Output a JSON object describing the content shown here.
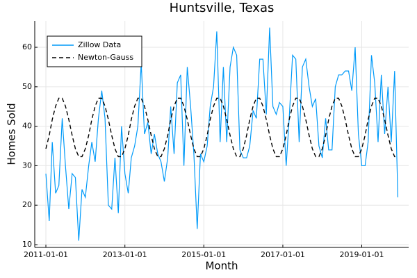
{
  "chart_data": {
    "type": "line",
    "title": "Huntsville, Texas",
    "x_label": "Month",
    "y_label": "Homes Sold",
    "x": [
      "2011-01-01",
      "2011-02-01",
      "2011-03-01",
      "2011-04-01",
      "2011-05-01",
      "2011-06-01",
      "2011-07-01",
      "2011-08-01",
      "2011-09-01",
      "2011-10-01",
      "2011-11-01",
      "2011-12-01",
      "2012-01-01",
      "2012-02-01",
      "2012-03-01",
      "2012-04-01",
      "2012-05-01",
      "2012-06-01",
      "2012-07-01",
      "2012-08-01",
      "2012-09-01",
      "2012-10-01",
      "2012-11-01",
      "2012-12-01",
      "2013-01-01",
      "2013-02-01",
      "2013-03-01",
      "2013-04-01",
      "2013-05-01",
      "2013-06-01",
      "2013-07-01",
      "2013-08-01",
      "2013-09-01",
      "2013-10-01",
      "2013-11-01",
      "2013-12-01",
      "2014-01-01",
      "2014-02-01",
      "2014-03-01",
      "2014-04-01",
      "2014-05-01",
      "2014-06-01",
      "2014-07-01",
      "2014-08-01",
      "2014-09-01",
      "2014-10-01",
      "2014-11-01",
      "2014-12-01",
      "2015-01-01",
      "2015-02-01",
      "2015-03-01",
      "2015-04-01",
      "2015-05-01",
      "2015-06-01",
      "2015-07-01",
      "2015-08-01",
      "2015-09-01",
      "2015-10-01",
      "2015-11-01",
      "2015-12-01",
      "2016-01-01",
      "2016-02-01",
      "2016-03-01",
      "2016-04-01",
      "2016-05-01",
      "2016-06-01",
      "2016-07-01",
      "2016-08-01",
      "2016-09-01",
      "2016-10-01",
      "2016-11-01",
      "2016-12-01",
      "2017-01-01",
      "2017-02-01",
      "2017-03-01",
      "2017-04-01",
      "2017-05-01",
      "2017-06-01",
      "2017-07-01",
      "2017-08-01",
      "2017-09-01",
      "2017-10-01",
      "2017-11-01",
      "2017-12-01",
      "2018-01-01",
      "2018-02-01",
      "2018-03-01",
      "2018-04-01",
      "2018-05-01",
      "2018-06-01",
      "2018-07-01",
      "2018-08-01",
      "2018-09-01",
      "2018-10-01",
      "2018-11-01",
      "2018-12-01",
      "2019-01-01",
      "2019-02-01",
      "2019-03-01",
      "2019-04-01",
      "2019-05-01",
      "2019-06-01",
      "2019-07-01",
      "2019-08-01",
      "2019-09-01",
      "2019-10-01",
      "2019-11-01",
      "2019-12-01"
    ],
    "series": [
      {
        "name": "Zillow Data",
        "color": "#009af9",
        "dash": "solid",
        "values": [
          28,
          16,
          36,
          23,
          25,
          42,
          30,
          19,
          28,
          27,
          11,
          24,
          22,
          30,
          36,
          31,
          42,
          49,
          42,
          20,
          19,
          32,
          18,
          40,
          28,
          23,
          32,
          35,
          40,
          56,
          38,
          41,
          33,
          38,
          33,
          31,
          26,
          32,
          45,
          33,
          51,
          53,
          30,
          55,
          45,
          33,
          14,
          33,
          31,
          35,
          45,
          50,
          64,
          36,
          55,
          36,
          55,
          60,
          58,
          34,
          32,
          32,
          35,
          44,
          42,
          57,
          57,
          43,
          65,
          45,
          43,
          46,
          45,
          30,
          42,
          58,
          57,
          36,
          55,
          57,
          50,
          45,
          47,
          35,
          32,
          42,
          34,
          34,
          50,
          53,
          53,
          54,
          54,
          49,
          60,
          38,
          30,
          30,
          36,
          58,
          51,
          36,
          53,
          38,
          50,
          36,
          54,
          22
        ]
      },
      {
        "name": "Newton-Gauss",
        "color": "#000000",
        "dash": "dashed",
        "values": [
          34.3,
          37.7,
          41.7,
          45.1,
          47.1,
          47.1,
          45.1,
          41.7,
          37.7,
          34.3,
          32.3,
          32.3,
          34.3,
          37.7,
          41.7,
          45.1,
          47.1,
          47.1,
          45.1,
          41.7,
          37.7,
          34.3,
          32.3,
          32.3,
          34.3,
          37.7,
          41.7,
          45.1,
          47.1,
          47.1,
          45.1,
          41.7,
          37.7,
          34.3,
          32.3,
          32.3,
          34.3,
          37.7,
          41.7,
          45.1,
          47.1,
          47.1,
          45.1,
          41.7,
          37.7,
          34.3,
          32.3,
          32.3,
          34.3,
          37.7,
          41.7,
          45.1,
          47.1,
          47.1,
          45.1,
          41.7,
          37.7,
          34.3,
          32.3,
          32.3,
          34.3,
          37.7,
          41.7,
          45.1,
          47.1,
          47.1,
          45.1,
          41.7,
          37.7,
          34.3,
          32.3,
          32.3,
          34.3,
          37.7,
          41.7,
          45.1,
          47.1,
          47.1,
          45.1,
          41.7,
          37.7,
          34.3,
          32.3,
          32.3,
          34.3,
          37.7,
          41.7,
          45.1,
          47.1,
          47.1,
          45.1,
          41.7,
          37.7,
          34.3,
          32.3,
          32.3,
          34.3,
          37.7,
          41.7,
          45.1,
          47.1,
          47.1,
          45.1,
          41.7,
          37.7,
          34.3,
          32.3,
          32.3
        ]
      }
    ],
    "xlim": [
      "2010-09-20",
      "2020-03-10"
    ],
    "xticks": [
      "2011-01-01",
      "2013-01-01",
      "2015-01-01",
      "2017-01-01",
      "2019-01-01"
    ],
    "ylim": [
      9.3,
      66.7
    ],
    "yticks": [
      10,
      20,
      30,
      40,
      50,
      60
    ],
    "grid": true,
    "legend": "top-left"
  }
}
